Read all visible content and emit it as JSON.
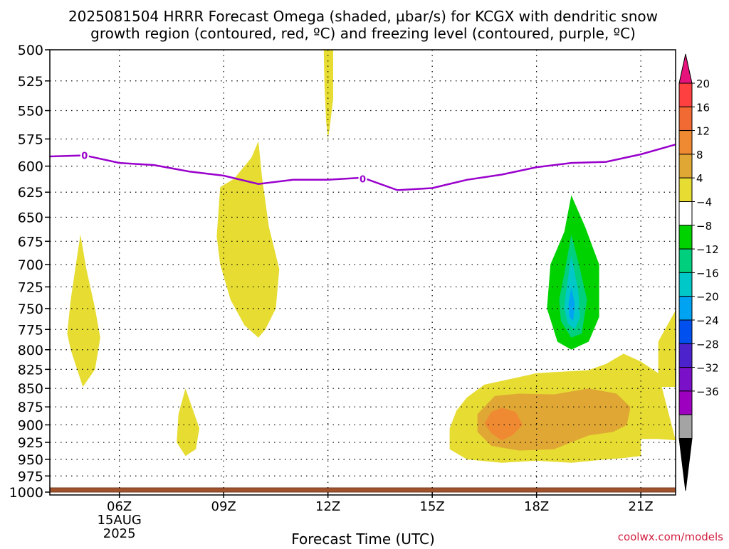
{
  "chart_data": {
    "type": "heatmap",
    "title_line1": "2025081504 HRRR Forecast Omega (shaded, µbar/s) for KCGX with dendritic snow",
    "title_line2": "growth region (contoured, red, ºC) and freezing level (contoured, purple, ºC)",
    "xlabel": "Forecast Time (UTC)",
    "credit": "coolwx.com/models",
    "x_range_hours": [
      4,
      22
    ],
    "x_ticks": [
      {
        "hour": 6,
        "label": "06Z",
        "sub1": "15AUG",
        "sub2": "2025"
      },
      {
        "hour": 9,
        "label": "09Z"
      },
      {
        "hour": 12,
        "label": "12Z"
      },
      {
        "hour": 15,
        "label": "15Z"
      },
      {
        "hour": 18,
        "label": "18Z"
      },
      {
        "hour": 21,
        "label": "21Z"
      }
    ],
    "y_range_hpa": [
      500,
      1000
    ],
    "y_ticks": [
      "500",
      "525",
      "550",
      "575",
      "600",
      "625",
      "650",
      "675",
      "700",
      "725",
      "750",
      "775",
      "800",
      "825",
      "850",
      "875",
      "900",
      "925",
      "950",
      "975",
      "1000"
    ],
    "grid": true,
    "freezing_level": {
      "color": "#9900cc",
      "label": "0",
      "label_points": [
        [
          5,
          590
        ],
        [
          13,
          612
        ]
      ],
      "points": [
        [
          4,
          591
        ],
        [
          5,
          590
        ],
        [
          6,
          597
        ],
        [
          7,
          599
        ],
        [
          8,
          605
        ],
        [
          9,
          609
        ],
        [
          10,
          617
        ],
        [
          11,
          613
        ],
        [
          12,
          613
        ],
        [
          13,
          611
        ],
        [
          14,
          623
        ],
        [
          15,
          621
        ],
        [
          16,
          613
        ],
        [
          17,
          608
        ],
        [
          18,
          601
        ],
        [
          19,
          597
        ],
        [
          20,
          596
        ],
        [
          21,
          589
        ],
        [
          22,
          580
        ]
      ]
    },
    "shaded_regions": [
      {
        "level": "4",
        "color": "#e6dc32",
        "points": [
          [
            4.88,
            668
          ],
          [
            5.05,
            705
          ],
          [
            5.3,
            750
          ],
          [
            5.45,
            785
          ],
          [
            5.3,
            825
          ],
          [
            4.95,
            848
          ],
          [
            4.6,
            800
          ],
          [
            4.5,
            780
          ],
          [
            4.6,
            740
          ],
          [
            4.75,
            700
          ]
        ]
      },
      {
        "level": "4",
        "color": "#e6dc32",
        "points": [
          [
            11.88,
            500
          ],
          [
            12.15,
            500
          ],
          [
            12.15,
            540
          ],
          [
            12.05,
            565
          ],
          [
            12.0,
            575
          ],
          [
            11.95,
            560
          ],
          [
            11.9,
            530
          ]
        ]
      },
      {
        "level": "4",
        "color": "#e6dc32",
        "points": [
          [
            8.9,
            620
          ],
          [
            9.3,
            612
          ],
          [
            9.8,
            592
          ],
          [
            10.0,
            577
          ],
          [
            10.1,
            610
          ],
          [
            10.3,
            660
          ],
          [
            10.6,
            705
          ],
          [
            10.5,
            750
          ],
          [
            10.2,
            775
          ],
          [
            10.0,
            785
          ],
          [
            9.6,
            770
          ],
          [
            9.2,
            740
          ],
          [
            8.9,
            700
          ],
          [
            8.8,
            670
          ]
        ]
      },
      {
        "level": "4",
        "color": "#e6dc32",
        "points": [
          [
            7.9,
            850
          ],
          [
            8.3,
            905
          ],
          [
            8.2,
            935
          ],
          [
            7.9,
            945
          ],
          [
            7.65,
            925
          ],
          [
            7.7,
            885
          ]
        ]
      },
      {
        "level": "4",
        "color": "#e6dc32",
        "points": [
          [
            16.0,
            862
          ],
          [
            16.5,
            845
          ],
          [
            17.5,
            835
          ],
          [
            18.0,
            830
          ],
          [
            19.5,
            826
          ],
          [
            20.0,
            818
          ],
          [
            20.5,
            805
          ],
          [
            21.0,
            815
          ],
          [
            21.5,
            830
          ],
          [
            22.0,
            922
          ],
          [
            21.5,
            920
          ],
          [
            21.0,
            920
          ],
          [
            21.0,
            945
          ],
          [
            20.5,
            948
          ],
          [
            20.0,
            950
          ],
          [
            19.0,
            955
          ],
          [
            18.0,
            952
          ],
          [
            17.0,
            955
          ],
          [
            16.0,
            950
          ],
          [
            15.5,
            935
          ],
          [
            15.5,
            905
          ],
          [
            15.7,
            880
          ]
        ]
      },
      {
        "level": "4",
        "color": "#e6dc32",
        "points": [
          [
            21.5,
            790
          ],
          [
            22.0,
            752
          ],
          [
            22.0,
            848
          ],
          [
            21.5,
            848
          ]
        ]
      },
      {
        "level": "8",
        "color": "#e0a734",
        "points": [
          [
            16.3,
            885
          ],
          [
            16.8,
            860
          ],
          [
            17.5,
            857
          ],
          [
            18.5,
            858
          ],
          [
            19.5,
            850
          ],
          [
            20.3,
            857
          ],
          [
            20.7,
            875
          ],
          [
            20.6,
            900
          ],
          [
            20.2,
            910
          ],
          [
            19.5,
            915
          ],
          [
            18.5,
            935
          ],
          [
            17.5,
            937
          ],
          [
            16.7,
            930
          ],
          [
            16.3,
            910
          ]
        ]
      },
      {
        "level": "12",
        "color": "#ef8a32",
        "points": [
          [
            16.7,
            882
          ],
          [
            17.0,
            876
          ],
          [
            17.4,
            882
          ],
          [
            17.6,
            900
          ],
          [
            17.3,
            915
          ],
          [
            17.0,
            922
          ],
          [
            16.7,
            912
          ],
          [
            16.5,
            898
          ]
        ]
      },
      {
        "level": "-4",
        "color": "#00d200",
        "points": [
          [
            18.8,
            665
          ],
          [
            19.0,
            628
          ],
          [
            19.4,
            660
          ],
          [
            19.8,
            700
          ],
          [
            19.8,
            760
          ],
          [
            19.5,
            790
          ],
          [
            19.0,
            800
          ],
          [
            18.6,
            790
          ],
          [
            18.3,
            750
          ],
          [
            18.4,
            700
          ]
        ]
      },
      {
        "level": "-8",
        "color": "#00cf7e",
        "points": [
          [
            18.8,
            710
          ],
          [
            19.0,
            668
          ],
          [
            19.25,
            705
          ],
          [
            19.45,
            740
          ],
          [
            19.3,
            780
          ],
          [
            19.0,
            785
          ],
          [
            18.7,
            765
          ],
          [
            18.65,
            740
          ]
        ]
      },
      {
        "level": "-12",
        "color": "#00c8c8",
        "points": [
          [
            18.85,
            730
          ],
          [
            19.0,
            690
          ],
          [
            19.2,
            730
          ],
          [
            19.25,
            760
          ],
          [
            19.1,
            775
          ],
          [
            18.9,
            768
          ],
          [
            18.8,
            750
          ]
        ]
      },
      {
        "level": "-16",
        "color": "#00a2f2",
        "points": [
          [
            19.0,
            725
          ],
          [
            19.1,
            745
          ],
          [
            19.05,
            765
          ],
          [
            18.95,
            760
          ],
          [
            18.92,
            745
          ]
        ]
      }
    ],
    "ground": {
      "color": "#a0522d",
      "outline": "#7a3e1d"
    },
    "colorbar": {
      "labels": [
        "20",
        "16",
        "12",
        "8",
        "4",
        "−4",
        "−8",
        "−12",
        "−16",
        "−20",
        "−24",
        "−28",
        "−32",
        "−36"
      ],
      "top_arrow_color": "#e6137c",
      "bottom_arrow_color": "#000000",
      "segments": [
        {
          "color": "#ff4040"
        },
        {
          "color": "#f26a33"
        },
        {
          "color": "#ef8a32"
        },
        {
          "color": "#e0a734"
        },
        {
          "color": "#e6dc32"
        },
        {
          "color": "#ffffff"
        },
        {
          "color": "#00d200"
        },
        {
          "color": "#00cf7e"
        },
        {
          "color": "#00c8c8"
        },
        {
          "color": "#00a2f2"
        },
        {
          "color": "#0050f0"
        },
        {
          "color": "#4b22cc"
        },
        {
          "color": "#7a10c8"
        },
        {
          "color": "#9e00c0"
        },
        {
          "color": "#a4a4a4"
        }
      ]
    }
  }
}
